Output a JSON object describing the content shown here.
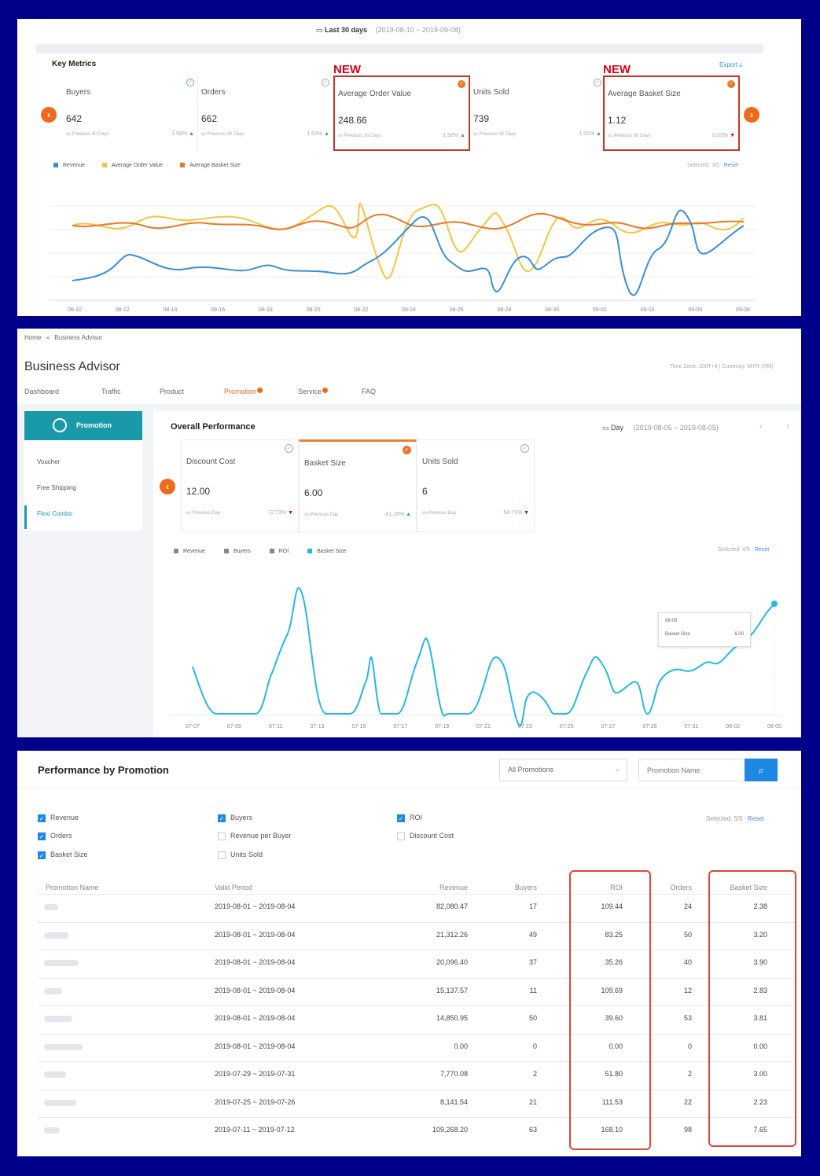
{
  "panel1": {
    "date_label": "Last 30 days",
    "date_range": "(2019-08-10 ~ 2019-09-08)",
    "title": "Key Metrics",
    "export": "Export",
    "new_tag": "NEW",
    "metrics": [
      {
        "name": "Buyers",
        "value": "642",
        "compare": "vs Previous 30 Days",
        "pct": "1.58%",
        "dir": "up"
      },
      {
        "name": "Orders",
        "value": "662",
        "compare": "vs Previous 30 Days",
        "pct": "1.53%",
        "dir": "up"
      },
      {
        "name": "Average Order Value",
        "value": "248.66",
        "compare": "vs Previous 30 Days",
        "pct": "1.58%",
        "dir": "up"
      },
      {
        "name": "Units Sold",
        "value": "739",
        "compare": "vs Previous 30 Days",
        "pct": "1.51%",
        "dir": "up"
      },
      {
        "name": "Average Basket Size",
        "value": "1.12",
        "compare": "vs Previous 30 Days",
        "pct": "0.03%",
        "dir": "down"
      }
    ],
    "legend": [
      "Revenue",
      "Average Order Value",
      "Average Basket Size"
    ],
    "selected": "Selected: 3/5",
    "reset": "Reset",
    "x_ticks": [
      "08-10",
      "08-12",
      "08-14",
      "08-16",
      "08-18",
      "08-20",
      "08-22",
      "08-24",
      "08-26",
      "08-28",
      "08-30",
      "09-01",
      "09-03",
      "09-05",
      "09-08"
    ],
    "colors": {
      "revenue": "#3a8fd0",
      "aov": "#f4c542",
      "abs": "#e8792b",
      "accent": "#ee6a1e",
      "new": "#d0021b"
    }
  },
  "panel2": {
    "breadcrumb_home": "Home",
    "breadcrumb_sep": "»",
    "breadcrumb_current": "Business Advisor",
    "title": "Business Advisor",
    "timezone": "Time Zone: GMT+8 | Currency: MYR (RM)",
    "tabs": [
      "Dashboard",
      "Traffic",
      "Product",
      "Promotion",
      "Service",
      "FAQ"
    ],
    "side_header": "Promotion",
    "side_items": [
      "Voucher",
      "Free Shipping",
      "Flexi Combo"
    ],
    "section_title": "Overall Performance",
    "period_label": "Day",
    "period_range": "(2019-08-05 ~ 2019-08-05)",
    "metrics": [
      {
        "name": "Discount Cost",
        "value": "12.00",
        "compare": "vs Previous Day",
        "pct": "72.73%",
        "dir": "down"
      },
      {
        "name": "Basket Size",
        "value": "6.00",
        "compare": "vs Previous Day",
        "pct": "41.18%",
        "dir": "up"
      },
      {
        "name": "Units Sold",
        "value": "6",
        "compare": "vs Previous Day",
        "pct": "64.71%",
        "dir": "down"
      }
    ],
    "legend": [
      "Revenue",
      "Buyers",
      "ROI",
      "Basket Size"
    ],
    "selected": "Selected: 4/5",
    "reset": "Reset",
    "x_ticks": [
      "07-07",
      "07-09",
      "07-11",
      "07-13",
      "07-15",
      "07-17",
      "07-19",
      "07-21",
      "07-23",
      "07-25",
      "07-27",
      "07-29",
      "07-31",
      "08-02",
      "08-05"
    ],
    "tooltip": {
      "date": "08-05",
      "key": "Basket Size",
      "value": "6.00"
    },
    "colors": {
      "line": "#29b6e0",
      "teal": "#1a9aa8"
    }
  },
  "panel3": {
    "title": "Performance by Promotion",
    "filter": "All Promotions",
    "search_placeholder": "Promotion Name",
    "checkboxes": [
      {
        "label": "Revenue",
        "checked": true
      },
      {
        "label": "Orders",
        "checked": true
      },
      {
        "label": "Basket Size",
        "checked": true
      },
      {
        "label": "Buyers",
        "checked": true
      },
      {
        "label": "Revenue per Buyer",
        "checked": false
      },
      {
        "label": "Units Sold",
        "checked": false
      },
      {
        "label": "ROI",
        "checked": true
      },
      {
        "label": "Discount Cost",
        "checked": false
      }
    ],
    "selected": "Selected: 5/5",
    "reset": "Reset",
    "columns": [
      "Promotion Name",
      "Valid Period",
      "Revenue",
      "Buyers",
      "ROI",
      "Orders",
      "Basket Size"
    ],
    "rows": [
      {
        "period": "2019-08-01 ~ 2019-08-04",
        "revenue": "82,080.47",
        "buyers": "17",
        "roi": "109.44",
        "orders": "24",
        "basket": "2.38"
      },
      {
        "period": "2019-08-01 ~ 2019-08-04",
        "revenue": "21,312.26",
        "buyers": "49",
        "roi": "83.25",
        "orders": "50",
        "basket": "3.20"
      },
      {
        "period": "2019-08-01 ~ 2019-08-04",
        "revenue": "20,096.40",
        "buyers": "37",
        "roi": "35.26",
        "orders": "40",
        "basket": "3.90"
      },
      {
        "period": "2019-08-01 ~ 2019-08-04",
        "revenue": "15,137.57",
        "buyers": "11",
        "roi": "109.69",
        "orders": "12",
        "basket": "2.83"
      },
      {
        "period": "2019-08-01 ~ 2019-08-04",
        "revenue": "14,850.95",
        "buyers": "50",
        "roi": "39.60",
        "orders": "53",
        "basket": "3.81"
      },
      {
        "period": "2019-08-01 ~ 2019-08-04",
        "revenue": "0.00",
        "buyers": "0",
        "roi": "0.00",
        "orders": "0",
        "basket": "0.00"
      },
      {
        "period": "2019-07-29 ~ 2019-07-31",
        "revenue": "7,770.08",
        "buyers": "2",
        "roi": "51.80",
        "orders": "2",
        "basket": "3.00"
      },
      {
        "period": "2019-07-25 ~ 2019-07-26",
        "revenue": "8,141.54",
        "buyers": "21",
        "roi": "111.53",
        "orders": "22",
        "basket": "2.23"
      },
      {
        "period": "2019-07-11 ~ 2019-07-12",
        "revenue": "109,268.20",
        "buyers": "63",
        "roi": "168.10",
        "orders": "98",
        "basket": "7.65"
      }
    ],
    "colors": {
      "primary": "#1e88e5",
      "highlight": "#d9473b"
    }
  }
}
